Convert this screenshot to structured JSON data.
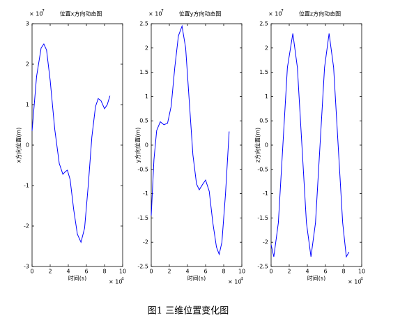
{
  "caption": "图1 三维位置变化图",
  "chart_data": [
    {
      "type": "line",
      "title": "位置x方向动态图",
      "xlabel": "时间(s)",
      "ylabel": "x方向位置(m)",
      "x_scale_base": "× 10",
      "x_scale_power": "4",
      "y_scale_base": "× 10",
      "y_scale_power": "7",
      "xlim": [
        0,
        10
      ],
      "xticks": [
        0,
        2,
        4,
        6,
        8,
        10
      ],
      "ylim": [
        -3,
        3
      ],
      "yticks": [
        -3,
        -2,
        -1,
        0,
        1,
        2,
        3
      ],
      "series": [
        {
          "color": "#0000ff",
          "x": [
            0,
            0.5,
            1,
            1.3,
            1.6,
            2,
            2.5,
            3,
            3.4,
            3.7,
            3.9,
            4.2,
            4.6,
            5,
            5.4,
            5.8,
            6.2,
            6.6,
            7,
            7.3,
            7.6,
            8,
            8.3,
            8.6
          ],
          "values": [
            0.35,
            1.7,
            2.4,
            2.5,
            2.35,
            1.6,
            0.4,
            -0.45,
            -0.72,
            -0.65,
            -0.62,
            -0.85,
            -1.6,
            -2.2,
            -2.4,
            -2.05,
            -1.0,
            0.2,
            0.95,
            1.15,
            1.1,
            0.9,
            1.0,
            1.22
          ]
        }
      ]
    },
    {
      "type": "line",
      "title": "位置y方向动态图",
      "xlabel": "时间(s)",
      "ylabel": "y方向位置(m)",
      "x_scale_base": "× 10",
      "x_scale_power": "4",
      "y_scale_base": "× 10",
      "y_scale_power": "7",
      "xlim": [
        0,
        10
      ],
      "xticks": [
        0,
        2,
        4,
        6,
        8,
        10
      ],
      "ylim": [
        -2.5,
        2.5
      ],
      "yticks": [
        -2.5,
        -2,
        -1.5,
        -1,
        -0.5,
        0,
        0.5,
        1,
        1.5,
        2,
        2.5
      ],
      "series": [
        {
          "color": "#0000ff",
          "x": [
            0,
            0.3,
            0.6,
            1,
            1.4,
            1.8,
            2.2,
            2.6,
            3,
            3.4,
            3.8,
            4.2,
            4.6,
            5,
            5.3,
            5.7,
            6,
            6.4,
            6.8,
            7.2,
            7.5,
            7.8,
            8.2,
            8.6
          ],
          "values": [
            -1.45,
            -0.3,
            0.3,
            0.48,
            0.42,
            0.45,
            0.8,
            1.6,
            2.25,
            2.45,
            2.0,
            0.9,
            -0.2,
            -0.8,
            -0.92,
            -0.8,
            -0.72,
            -0.95,
            -1.6,
            -2.1,
            -2.25,
            -2.0,
            -1.0,
            0.28
          ]
        }
      ]
    },
    {
      "type": "line",
      "title": "位置z方向动态图",
      "xlabel": "时间(s)",
      "ylabel": "z方向位置(m)",
      "x_scale_base": "× 10",
      "x_scale_power": "4",
      "y_scale_base": "× 10",
      "y_scale_power": "7",
      "xlim": [
        0,
        10
      ],
      "xticks": [
        0,
        2,
        4,
        6,
        8,
        10
      ],
      "ylim": [
        -2.5,
        2.5
      ],
      "yticks": [
        -2.5,
        -2,
        -1.5,
        -1,
        -0.5,
        0,
        0.5,
        1,
        1.5,
        2,
        2.5
      ],
      "series": [
        {
          "color": "#0000ff",
          "x": [
            0,
            0.3,
            0.8,
            1.3,
            1.8,
            2.4,
            2.9,
            3.4,
            3.9,
            4.4,
            4.9,
            5.4,
            5.9,
            6.4,
            6.9,
            7.4,
            7.9,
            8.3,
            8.6
          ],
          "values": [
            -2.05,
            -2.3,
            -1.6,
            0,
            1.6,
            2.3,
            1.6,
            0,
            -1.6,
            -2.3,
            -1.6,
            0,
            1.6,
            2.3,
            1.6,
            0,
            -1.6,
            -2.3,
            -2.2
          ]
        }
      ]
    }
  ]
}
